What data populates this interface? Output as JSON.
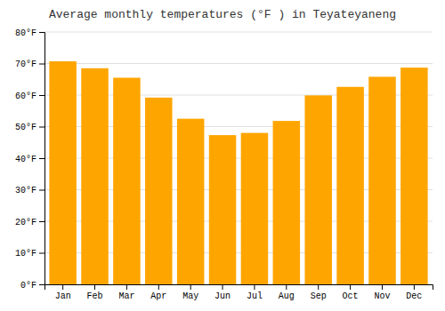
{
  "chart_data": {
    "type": "bar",
    "title": "Average monthly temperatures (°F ) in Teyateyaneng",
    "categories": [
      "Jan",
      "Feb",
      "Mar",
      "Apr",
      "May",
      "Jun",
      "Jul",
      "Aug",
      "Sep",
      "Oct",
      "Nov",
      "Dec"
    ],
    "values": [
      70.7,
      68.5,
      65.5,
      59.2,
      52.5,
      47.3,
      48.0,
      51.8,
      59.9,
      62.6,
      65.8,
      68.7
    ],
    "color": "#FFA500",
    "ylim": [
      0,
      80
    ],
    "yticks": [
      {
        "value": 0,
        "label": "0°F"
      },
      {
        "value": 10,
        "label": "10°F"
      },
      {
        "value": 20,
        "label": "20°F"
      },
      {
        "value": 30,
        "label": "30°F"
      },
      {
        "value": 40,
        "label": "40°F"
      },
      {
        "value": 50,
        "label": "50°F"
      },
      {
        "value": 60,
        "label": "60°F"
      },
      {
        "value": 70,
        "label": "70°F"
      },
      {
        "value": 80,
        "label": "80°F"
      }
    ],
    "grid": true
  }
}
